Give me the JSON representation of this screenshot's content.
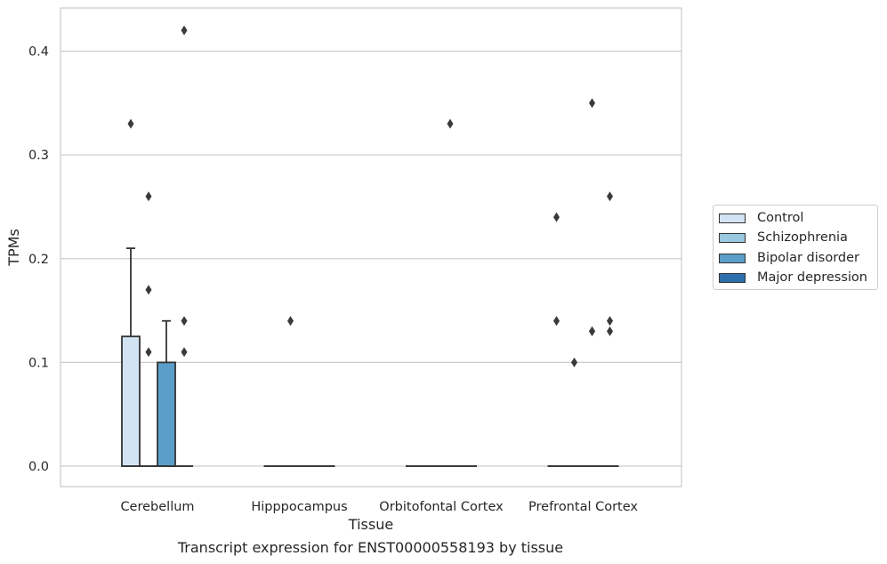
{
  "chart_data": {
    "type": "box",
    "xlabel": "Tissue",
    "ylabel": "TPMs",
    "caption": "Transcript expression for ENST00000558193 by tissue",
    "ylim": [
      -0.02,
      0.44
    ],
    "yticks": [
      0.0,
      0.1,
      0.2,
      0.3,
      0.4
    ],
    "ytick_labels": [
      "0.0",
      "0.1",
      "0.2",
      "0.3",
      "0.4"
    ],
    "grid": "horizontal",
    "legend_position": "right",
    "categories": [
      "Cerebellum",
      "Hipppocampus",
      "Orbitofontal Cortex",
      "Prefrontal Cortex"
    ],
    "series": [
      {
        "name": "Control",
        "color": "#d2e3f3",
        "boxes": [
          {
            "q1": 0,
            "median": 0,
            "q3": 0.125,
            "whisker_low": 0,
            "whisker_high": 0.21,
            "outliers": [
              0.33
            ]
          },
          {
            "q1": 0,
            "median": 0,
            "q3": 0,
            "whisker_low": 0,
            "whisker_high": 0,
            "outliers": []
          },
          {
            "q1": 0,
            "median": 0,
            "q3": 0,
            "whisker_low": 0,
            "whisker_high": 0,
            "outliers": []
          },
          {
            "q1": 0,
            "median": 0,
            "q3": 0,
            "whisker_low": 0,
            "whisker_high": 0,
            "outliers": [
              0.14,
              0.24
            ]
          }
        ]
      },
      {
        "name": "Schizophrenia",
        "color": "#9ac8e0",
        "boxes": [
          {
            "q1": 0,
            "median": 0,
            "q3": 0,
            "whisker_low": 0,
            "whisker_high": 0,
            "outliers": [
              0.11,
              0.17,
              0.26
            ]
          },
          {
            "q1": 0,
            "median": 0,
            "q3": 0,
            "whisker_low": 0,
            "whisker_high": 0,
            "outliers": [
              0.14
            ]
          },
          {
            "q1": 0,
            "median": 0,
            "q3": 0,
            "whisker_low": 0,
            "whisker_high": 0,
            "outliers": []
          },
          {
            "q1": 0,
            "median": 0,
            "q3": 0,
            "whisker_low": 0,
            "whisker_high": 0,
            "outliers": [
              0.1
            ]
          }
        ]
      },
      {
        "name": "Bipolar disorder",
        "color": "#5a9ec9",
        "boxes": [
          {
            "q1": 0,
            "median": 0,
            "q3": 0.1,
            "whisker_low": 0,
            "whisker_high": 0.14,
            "outliers": []
          },
          {
            "q1": 0,
            "median": 0,
            "q3": 0,
            "whisker_low": 0,
            "whisker_high": 0,
            "outliers": []
          },
          {
            "q1": 0,
            "median": 0,
            "q3": 0,
            "whisker_low": 0,
            "whisker_high": 0,
            "outliers": [
              0.33
            ]
          },
          {
            "q1": 0,
            "median": 0,
            "q3": 0,
            "whisker_low": 0,
            "whisker_high": 0,
            "outliers": [
              0.13,
              0.13,
              0.35
            ]
          }
        ]
      },
      {
        "name": "Major depression",
        "color": "#2d6fad",
        "boxes": [
          {
            "q1": 0,
            "median": 0,
            "q3": 0,
            "whisker_low": 0,
            "whisker_high": 0,
            "outliers": [
              0.11,
              0.14,
              0.42
            ]
          },
          {
            "q1": 0,
            "median": 0,
            "q3": 0,
            "whisker_low": 0,
            "whisker_high": 0,
            "outliers": []
          },
          {
            "q1": 0,
            "median": 0,
            "q3": 0,
            "whisker_low": 0,
            "whisker_high": 0,
            "outliers": []
          },
          {
            "q1": 0,
            "median": 0,
            "q3": 0,
            "whisker_low": 0,
            "whisker_high": 0,
            "outliers": [
              0.13,
              0.14,
              0.26
            ]
          }
        ]
      }
    ]
  }
}
